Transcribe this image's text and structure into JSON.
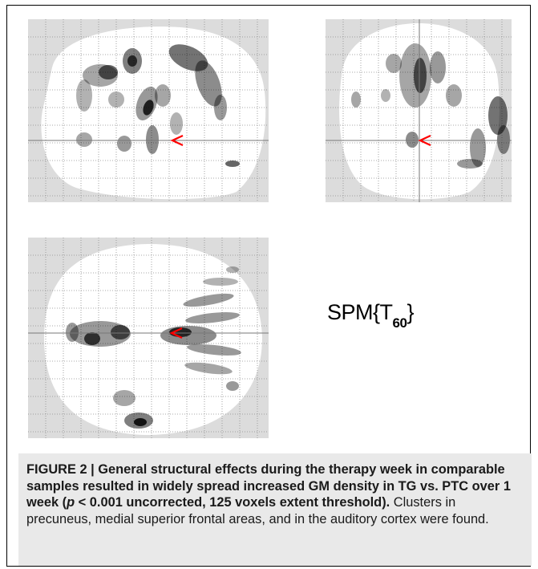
{
  "figure": {
    "label": "SPM{T",
    "subscript": "60",
    "closing": "}"
  },
  "caption": {
    "bold_lead": "FIGURE 2 | General structural effects during the therapy week in comparable samples resulted in widely spread increased GM density in TG vs. PTC over 1 week (",
    "bold_italic": "p",
    "bold_tail": " < 0.001 uncorrected, 125 voxels extent threshold).",
    "body": " Clusters in precuneus, medial superior frontal areas, and in the auditory cortex were found."
  },
  "colors": {
    "marker": "#ff0000",
    "grid": "#8c8c8c",
    "background_outside": "#dcdcdc"
  }
}
